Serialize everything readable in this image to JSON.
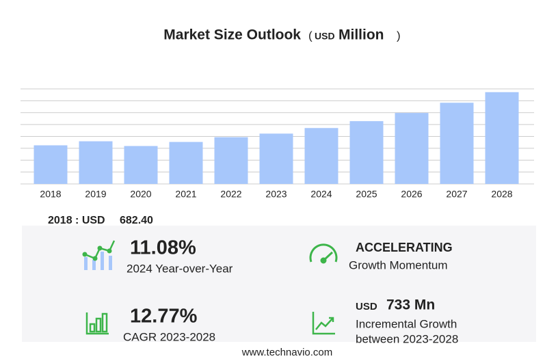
{
  "chart_data": {
    "type": "bar",
    "title": "Market Size Outlook",
    "title_unit": {
      "open": "(",
      "currency": "USD",
      "unit": "Million",
      "close": ")"
    },
    "categories": [
      "2018",
      "2019",
      "2020",
      "2021",
      "2022",
      "2023",
      "2024",
      "2025",
      "2026",
      "2027",
      "2028"
    ],
    "values": [
      682.4,
      754,
      670,
      742,
      826,
      889.6,
      988.2,
      1110,
      1255,
      1435,
      1622.6
    ],
    "color": "#a7c7fb",
    "ylim": [
      0,
      1680
    ],
    "yticks": [
      0,
      210,
      420,
      630,
      840,
      1050,
      1260,
      1470,
      1680
    ],
    "grid": true
  },
  "summary": {
    "base": {
      "label": "2018 : USD",
      "value": "682.40"
    },
    "yoy": {
      "value": "11.08%",
      "label": "2024 Year-over-Year"
    },
    "momentum": {
      "value": "ACCELERATING",
      "label": "Growth Momentum"
    },
    "cagr": {
      "value": "12.77%",
      "label": "CAGR 2023-2028"
    },
    "incremental": {
      "currency": "USD",
      "value": "733 Mn",
      "label1": "Incremental Growth",
      "label2": "between 2023-2028"
    },
    "footer": "www.technavio.com"
  }
}
